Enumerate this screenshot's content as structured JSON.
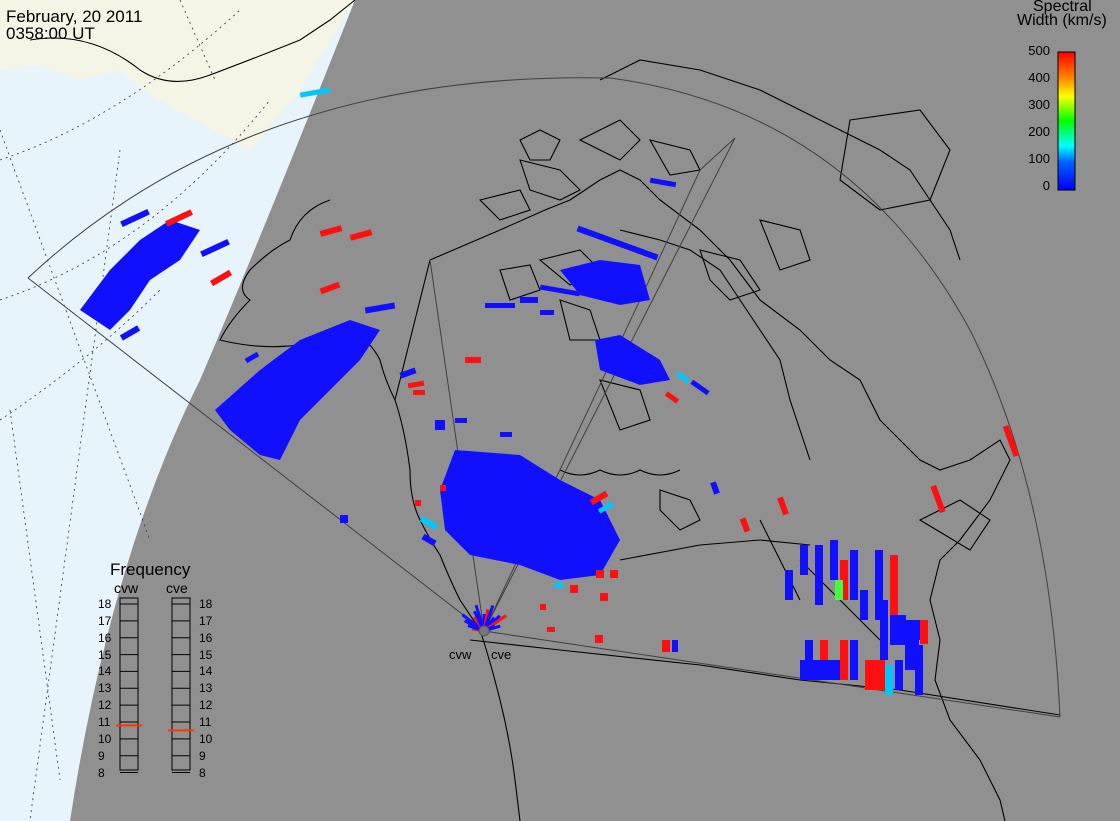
{
  "title": {
    "date": "February, 20 2011",
    "time": "0358:00 UT"
  },
  "colorbar": {
    "title_line1": "Spectral",
    "title_line2": "Width (km/s)",
    "ticks": [
      "500",
      "400",
      "300",
      "200",
      "100",
      "0"
    ],
    "colors": [
      "#0000ff",
      "#00ffff",
      "#00ff00",
      "#ffff00",
      "#ff0000"
    ],
    "range": [
      0,
      500
    ]
  },
  "frequency_panel": {
    "title": "Frequency",
    "radars": [
      "cvw",
      "cve"
    ],
    "ticks": [
      "18",
      "17",
      "16",
      "15",
      "14",
      "13",
      "12",
      "11",
      "10",
      "9",
      "8"
    ],
    "range_mhz": [
      8,
      18
    ],
    "values_mhz": [
      10.8,
      10.5
    ],
    "marker_color": "#ff3300"
  },
  "radar_labels": [
    "cvw",
    "cve"
  ],
  "map_colors": {
    "ocean": "#e8f4fb",
    "land_outside": "#f5f5e6",
    "night": "#909090",
    "coast": "#000000",
    "fov_line": "#404040"
  }
}
